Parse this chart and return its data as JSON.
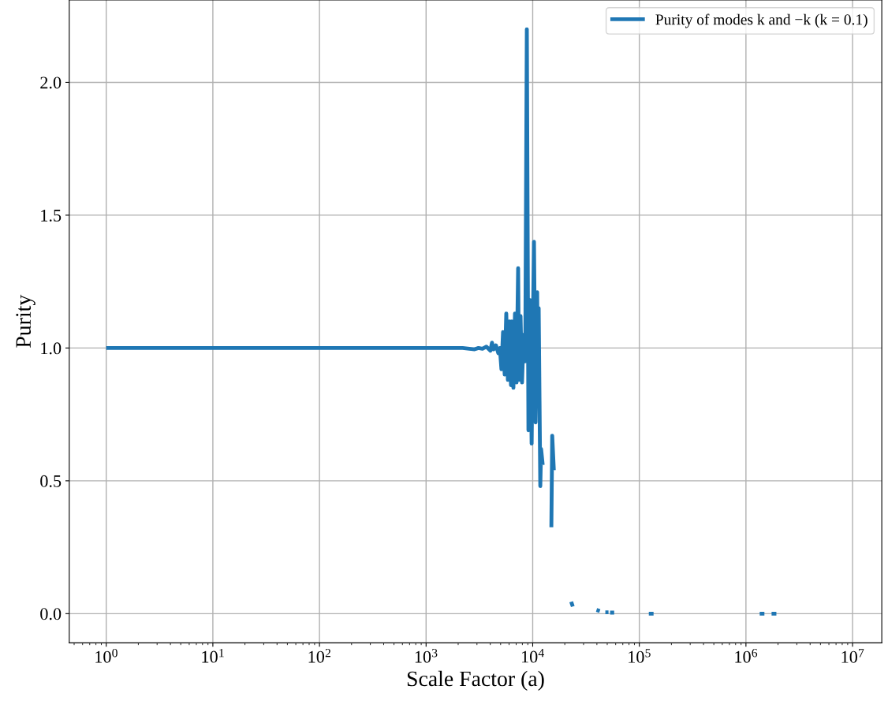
{
  "chart_data": {
    "type": "line",
    "xlabel": "Scale Factor (a)",
    "ylabel": "Purity",
    "log": "x",
    "grid": true,
    "legend": "top right",
    "line_style": "solid",
    "marker": "none",
    "xlim": [
      0.45,
      18800000
    ],
    "ylim": [
      -0.11,
      2.31
    ],
    "xticks": [
      {
        "value": 1,
        "label": "10$^{0}$"
      },
      {
        "value": 10,
        "label": "10$^{1}$"
      },
      {
        "value": 100,
        "label": "10$^{2}$"
      },
      {
        "value": 1000,
        "label": "10$^{3}$"
      },
      {
        "value": 10000,
        "label": "10$^{4}$"
      },
      {
        "value": 100000,
        "label": "10$^{5}$"
      },
      {
        "value": 1000000,
        "label": "10$^{6}$"
      },
      {
        "value": 10000000,
        "label": "10$^{7}$"
      }
    ],
    "yticks": [
      {
        "value": 0,
        "label": "0.0"
      },
      {
        "value": 0.5,
        "label": "0.5"
      },
      {
        "value": 1,
        "label": "1.0"
      },
      {
        "value": 1.5,
        "label": "1.5"
      },
      {
        "value": 2,
        "label": "2.0"
      }
    ],
    "series": [
      {
        "name": "Purity of modes k and −k (k = 0.1)",
        "color": "#1f77b4",
        "x": [
          1,
          2200,
          2850,
          3100,
          3380,
          3680,
          4010,
          4150,
          4300,
          4520,
          4760,
          4920,
          5090,
          5270,
          5460,
          5650,
          5850,
          6050,
          6250,
          6360,
          6590,
          6820,
          7050,
          7300,
          7430,
          7690,
          7940,
          8220,
          8510,
          8810,
          9120,
          9440,
          9770,
          10090,
          10280,
          10640,
          11010,
          11200,
          11380,
          11780,
          11990,
          12410,
          13500,
          14960,
          15240,
          15780,
          20000,
          22960,
          23770,
          30000,
          39700,
          42600,
          45000,
          48000,
          51400,
          52300,
          53200,
          58100,
          90000,
          122800,
          136000,
          500000,
          1346000,
          1490000,
          1600000,
          1740000,
          1930000
        ],
        "values": [
          1.0,
          1.0,
          0.995,
          1.0,
          0.997,
          1.005,
          0.99,
          1.02,
          0.995,
          1.01,
          0.98,
          1.0,
          0.92,
          1.06,
          0.9,
          1.13,
          0.88,
          1.1,
          0.86,
          1.1,
          0.85,
          1.13,
          0.87,
          1.3,
          0.88,
          1.12,
          0.87,
          1.05,
          0.95,
          2.2,
          0.69,
          1.18,
          0.64,
          1.15,
          1.4,
          0.72,
          1.21,
          0.88,
          1.15,
          0.48,
          0.62,
          0.56,
          null,
          0.325,
          0.67,
          0.54,
          null,
          0.045,
          0.027,
          null,
          0.014,
          0.01,
          null,
          0.005,
          0.005,
          null,
          0.004,
          0.004,
          null,
          0.0,
          0.0,
          null,
          0.0,
          0.0,
          null,
          0.0,
          0.0
        ]
      }
    ]
  }
}
